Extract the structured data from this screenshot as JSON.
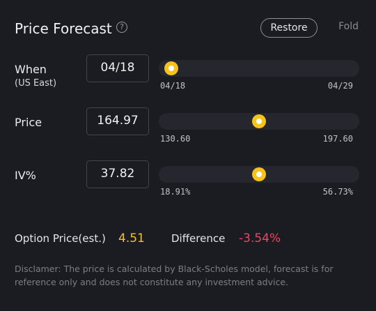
{
  "header": {
    "title": "Price Forecast",
    "help_icon": "?",
    "restore_label": "Restore",
    "fold_label": "Fold"
  },
  "rows": [
    {
      "label": "When",
      "sublabel": "(US East)",
      "value": "04/18",
      "min": "04/18",
      "max": "04/29",
      "fraction": 0.03
    },
    {
      "label": "Price",
      "value": "164.97",
      "min": "130.60",
      "max": "197.60",
      "fraction": 0.5
    },
    {
      "label": "IV%",
      "value": "37.82",
      "min": "18.91%",
      "max": "56.73%",
      "fraction": 0.5
    }
  ],
  "summary": {
    "option_price_label": "Option Price(est.)",
    "option_price_value": "4.51",
    "difference_label": "Difference",
    "difference_value": "-3.54%"
  },
  "disclaimer": "Disclamer: The price is calculated by Black-Scholes model, forecast is for reference only and does not constitute any investment advice.",
  "colors": {
    "accent": "#f6c31a",
    "negative": "#f4445e",
    "background": "#1b1b22"
  }
}
